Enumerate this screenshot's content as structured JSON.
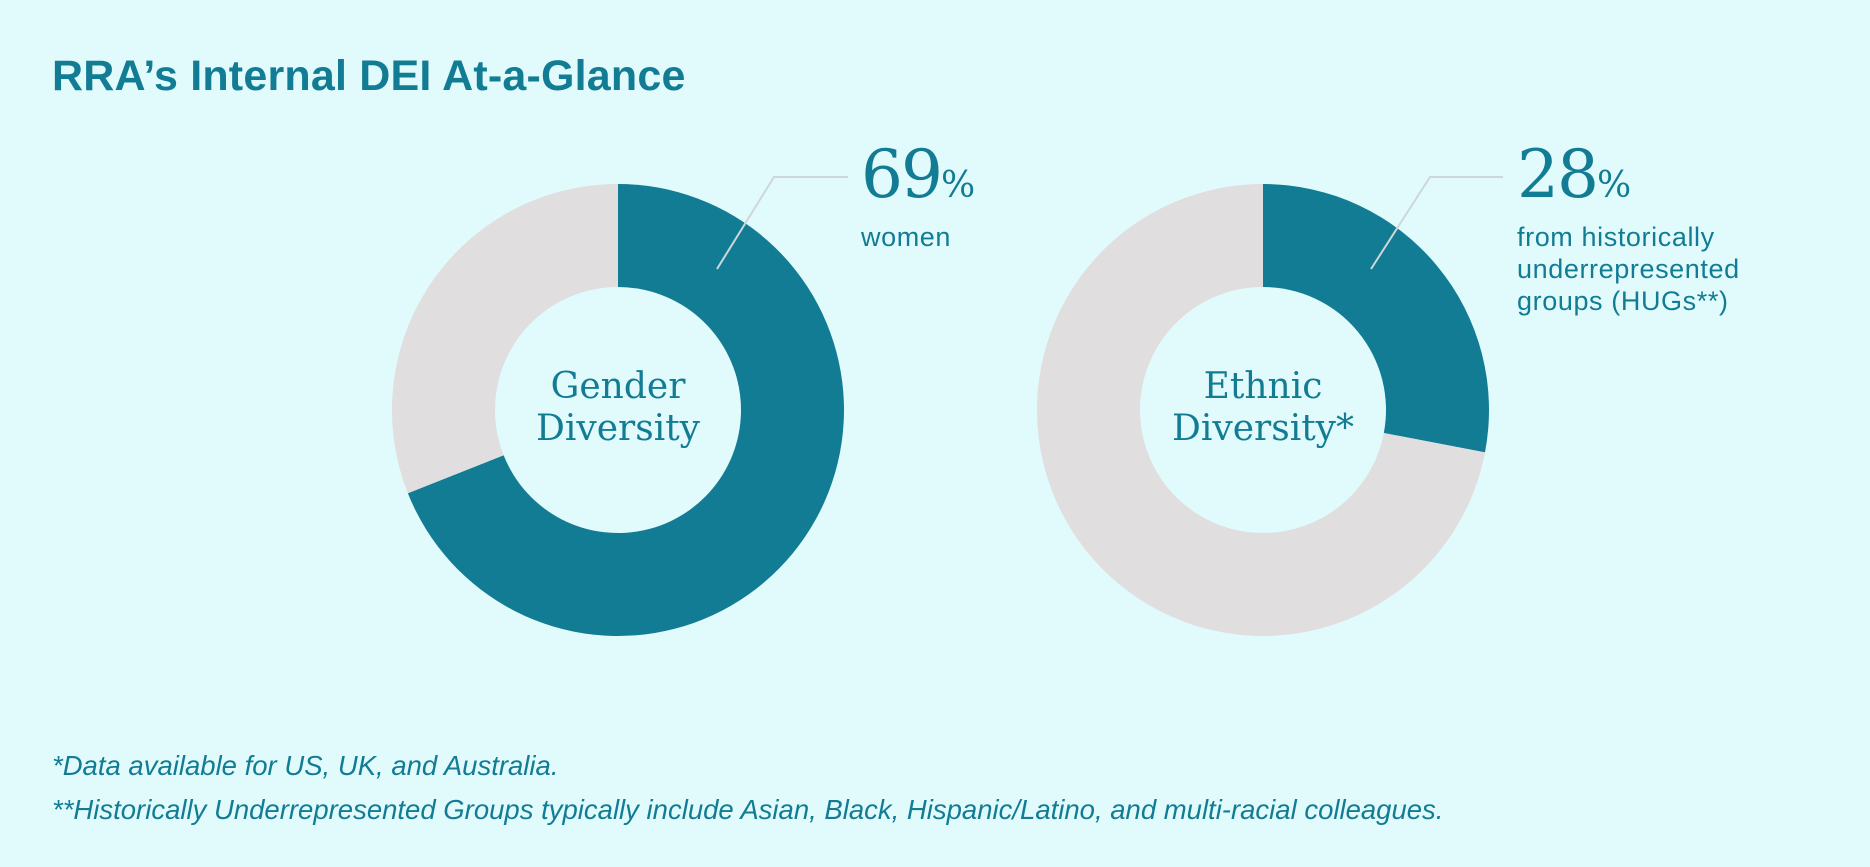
{
  "title": "RRA’s Internal DEI At-a-Glance",
  "colors": {
    "background": "#e1fbfc",
    "accent": "#127c95",
    "remainder": "#e0dede",
    "leader_line": "#cfd6d8"
  },
  "chart_data": [
    {
      "type": "pie",
      "center_label": [
        "Gender",
        "Diversity"
      ],
      "categories": [
        "women",
        "other"
      ],
      "values": [
        69,
        31
      ],
      "highlight": {
        "value": "69",
        "unit": "%",
        "description": [
          "women"
        ]
      }
    },
    {
      "type": "pie",
      "center_label": [
        "Ethnic",
        "Diversity*"
      ],
      "categories": [
        "from historically underrepresented groups (HUGs**)",
        "other"
      ],
      "values": [
        28,
        72
      ],
      "highlight": {
        "value": "28",
        "unit": "%",
        "description": [
          "from historically",
          "underrepresented",
          "groups (HUGs**)"
        ]
      }
    }
  ],
  "footnotes": [
    "*Data available for US, UK, and Australia.",
    "**Historically Underrepresented Groups typically include Asian, Black, Hispanic/Latino, and multi-racial colleagues."
  ]
}
